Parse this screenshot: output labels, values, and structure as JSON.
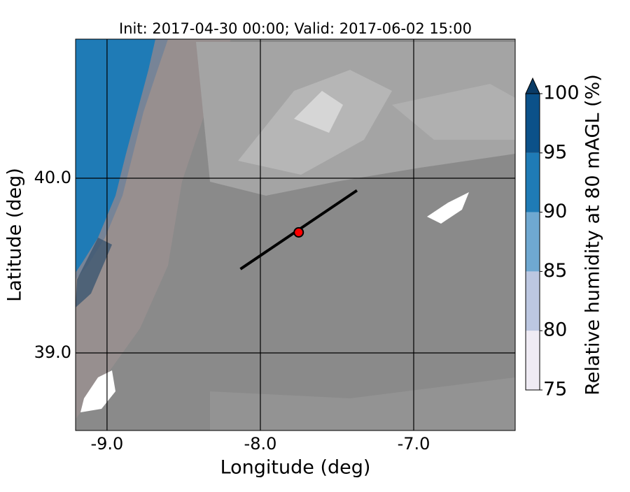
{
  "chart_data": {
    "type": "map",
    "title": "Init: 2017-04-30 00:00; Valid: 2017-06-02 15:00",
    "x_label": "Longitude (deg)",
    "y_label": "Latitude (deg)",
    "xlim": [
      -9.205,
      -6.338
    ],
    "ylim": [
      38.556,
      40.796
    ],
    "xticks": [
      {
        "value": -9,
        "label": "-9.0"
      },
      {
        "value": -8,
        "label": "-8.0"
      },
      {
        "value": -7,
        "label": "-7.0"
      }
    ],
    "yticks": [
      {
        "value": 39,
        "label": "39.0"
      },
      {
        "value": 40,
        "label": "40.0"
      }
    ],
    "grid": true,
    "transect": {
      "x": [
        -8.13,
        -7.37
      ],
      "y": [
        39.48,
        39.93
      ],
      "color": "#000000"
    },
    "point": {
      "x": -7.75,
      "y": 39.69,
      "color": "#ff0000"
    },
    "colorbar": {
      "label": "Relative humidity at 80 mAGL (%)",
      "levels": [
        75,
        80,
        85,
        90,
        95,
        100
      ],
      "colors": [
        "#efebf4",
        "#bcc7e1",
        "#6fa8d1",
        "#1f7bb6",
        "#0b5189"
      ],
      "extend_color": "#0a3b66"
    }
  }
}
